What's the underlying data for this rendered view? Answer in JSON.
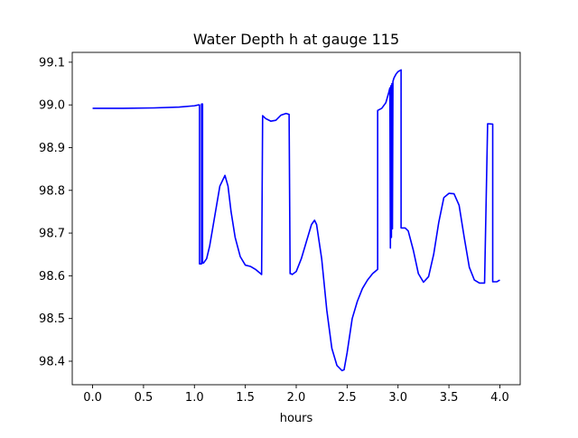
{
  "chart_data": {
    "type": "line",
    "title": "Water Depth h at gauge 115",
    "xlabel": "hours",
    "ylabel": "",
    "xlim": [
      -0.2,
      4.2
    ],
    "ylim": [
      98.345,
      99.123
    ],
    "xticks": [
      0.0,
      0.5,
      1.0,
      1.5,
      2.0,
      2.5,
      3.0,
      3.5,
      4.0
    ],
    "xtick_labels": [
      "0.0",
      "0.5",
      "1.0",
      "1.5",
      "2.0",
      "2.5",
      "3.0",
      "3.5",
      "4.0"
    ],
    "yticks": [
      98.4,
      98.5,
      98.6,
      98.7,
      98.8,
      98.9,
      99.0,
      99.1
    ],
    "ytick_labels": [
      "98.4",
      "98.5",
      "98.6",
      "98.7",
      "98.8",
      "98.9",
      "99.0",
      "99.1"
    ],
    "grid": false,
    "line_color": "#0000ff",
    "series": [
      {
        "x": [
          0.0,
          0.3,
          0.6,
          0.85,
          1.0,
          1.04,
          1.05,
          1.05,
          1.07,
          1.07,
          1.08,
          1.08,
          1.09,
          1.09,
          1.12,
          1.15,
          1.2,
          1.25,
          1.3,
          1.33,
          1.36,
          1.4,
          1.45,
          1.5,
          1.55,
          1.6,
          1.65,
          1.66,
          1.67,
          1.7,
          1.75,
          1.8,
          1.85,
          1.9,
          1.93,
          1.94,
          1.95,
          1.96,
          2.0,
          2.05,
          2.1,
          2.15,
          2.18,
          2.2,
          2.25,
          2.3,
          2.35,
          2.4,
          2.45,
          2.47,
          2.5,
          2.55,
          2.6,
          2.65,
          2.7,
          2.75,
          2.8,
          2.8,
          2.84,
          2.88,
          2.91,
          2.92,
          2.925,
          2.93,
          2.935,
          2.94,
          2.945,
          2.95,
          2.96,
          2.98,
          3.0,
          3.03,
          3.03,
          3.04,
          3.05,
          3.05,
          3.07,
          3.1,
          3.15,
          3.2,
          3.25,
          3.3,
          3.35,
          3.4,
          3.45,
          3.5,
          3.55,
          3.6,
          3.65,
          3.7,
          3.75,
          3.8,
          3.85,
          3.88,
          3.88,
          3.93,
          3.93,
          3.97,
          4.0
        ],
        "y": [
          98.992,
          98.992,
          98.993,
          98.995,
          98.998,
          99.0,
          99.0,
          98.628,
          98.628,
          99.002,
          99.002,
          98.63,
          98.63,
          98.63,
          98.64,
          98.67,
          98.74,
          98.81,
          98.835,
          98.81,
          98.75,
          98.69,
          98.645,
          98.625,
          98.622,
          98.615,
          98.605,
          98.603,
          98.975,
          98.968,
          98.962,
          98.964,
          98.976,
          98.98,
          98.978,
          98.605,
          98.605,
          98.603,
          98.61,
          98.64,
          98.68,
          98.72,
          98.73,
          98.72,
          98.64,
          98.52,
          98.43,
          98.39,
          98.378,
          98.38,
          98.42,
          98.5,
          98.54,
          98.57,
          98.59,
          98.605,
          98.615,
          98.987,
          98.992,
          99.005,
          99.03,
          99.04,
          98.665,
          99.045,
          98.69,
          99.05,
          98.71,
          99.055,
          99.063,
          99.072,
          99.078,
          99.082,
          98.712,
          98.712,
          98.712,
          98.712,
          98.712,
          98.705,
          98.66,
          98.605,
          98.585,
          98.598,
          98.65,
          98.725,
          98.783,
          98.793,
          98.792,
          98.765,
          98.69,
          98.62,
          98.59,
          98.583,
          98.583,
          98.956,
          98.956,
          98.955,
          98.586,
          98.586,
          98.59
        ]
      }
    ]
  }
}
